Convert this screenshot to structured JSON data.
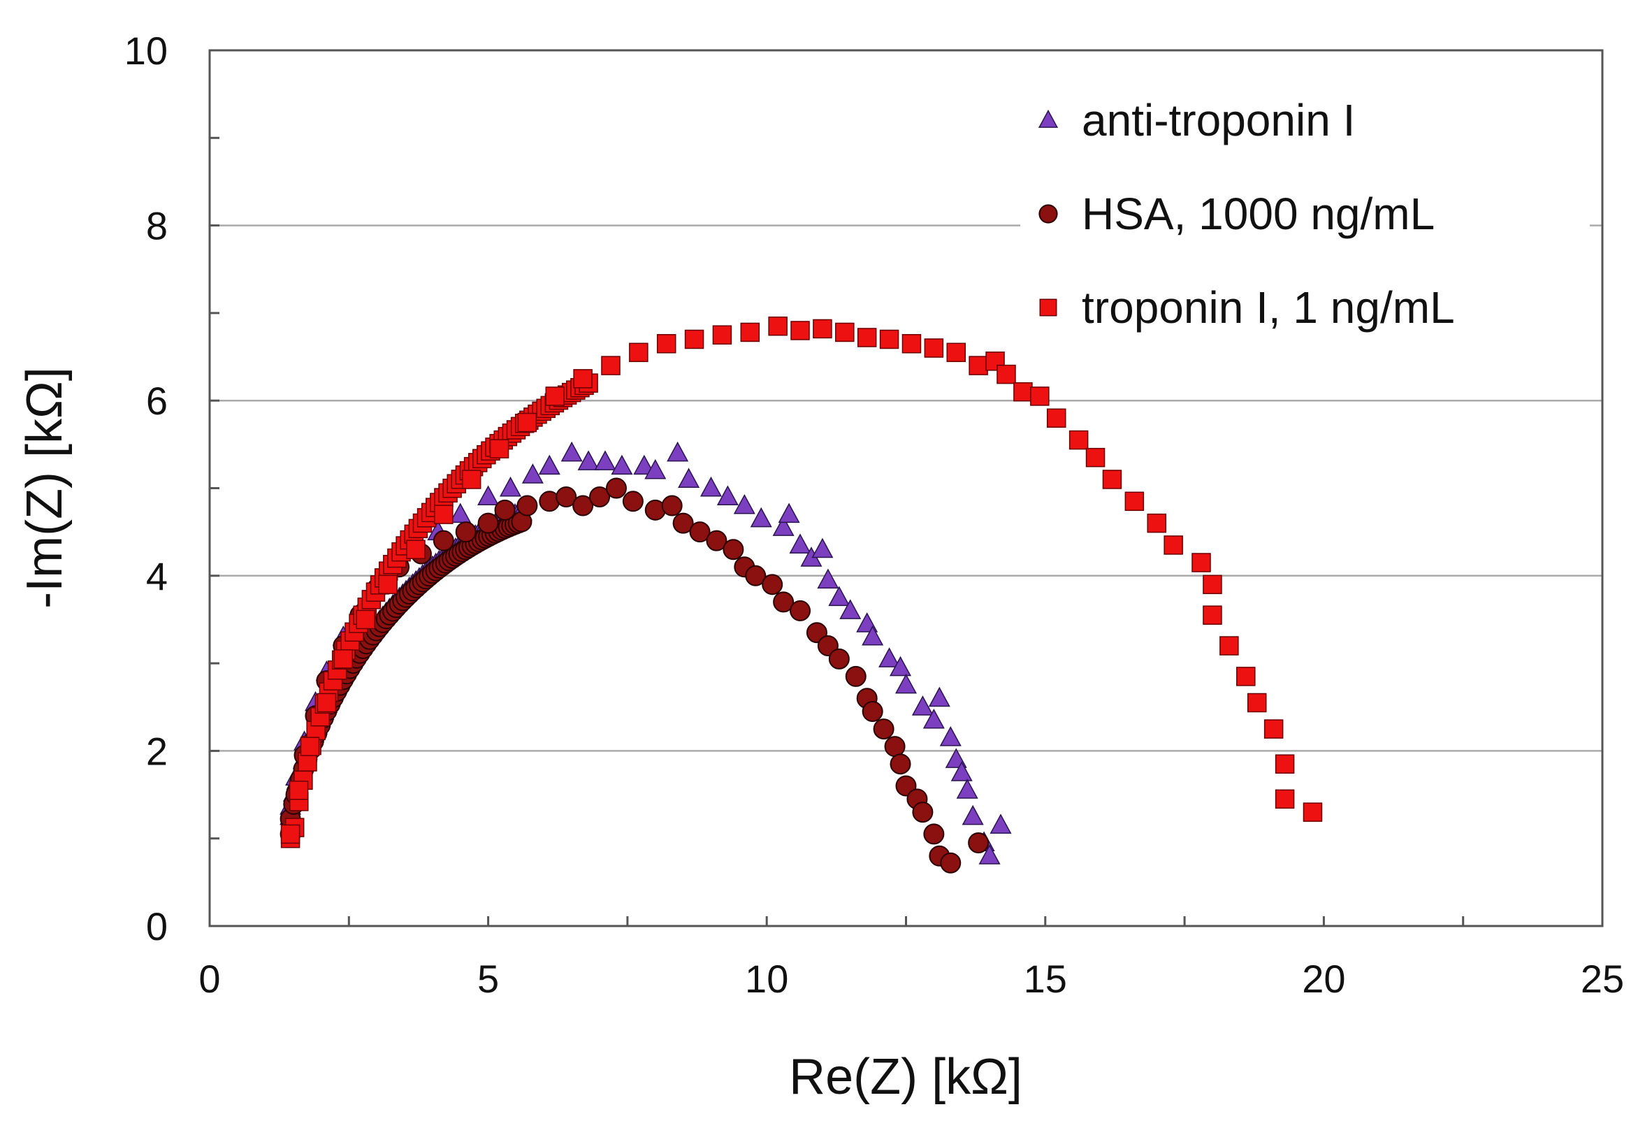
{
  "chart_data": {
    "type": "scatter",
    "title": "",
    "xlabel": "Re(Z) [kΩ]",
    "ylabel": "-Im(Z) [kΩ]",
    "xlim": [
      0,
      25
    ],
    "ylim": [
      0,
      10
    ],
    "xticks": [
      0,
      5,
      10,
      15,
      20,
      25
    ],
    "yticks": [
      0,
      2,
      4,
      6,
      8,
      10
    ],
    "xtick_labels": [
      "0",
      "5",
      "10",
      "15",
      "20",
      "25"
    ],
    "ytick_labels": [
      "0",
      "2",
      "4",
      "6",
      "8",
      "10"
    ],
    "grid": "horizontal",
    "legend_position": "top-right",
    "series": [
      {
        "name": "anti-troponin I",
        "marker": "triangle",
        "color": "#7b3fbf",
        "fit": {
          "center": 7.8,
          "radius": 6.6,
          "yscale": 0.76
        },
        "points": [
          [
            1.45,
            1.25
          ],
          [
            1.55,
            1.7
          ],
          [
            1.7,
            2.1
          ],
          [
            1.9,
            2.55
          ],
          [
            2.1,
            2.9
          ],
          [
            2.4,
            3.3
          ],
          [
            2.7,
            3.6
          ],
          [
            3.0,
            3.9
          ],
          [
            3.3,
            4.1
          ],
          [
            3.7,
            4.3
          ],
          [
            4.1,
            4.5
          ],
          [
            4.5,
            4.7
          ],
          [
            5.0,
            4.9
          ],
          [
            5.4,
            5.0
          ],
          [
            5.8,
            5.15
          ],
          [
            6.1,
            5.25
          ],
          [
            6.5,
            5.4
          ],
          [
            6.8,
            5.3
          ],
          [
            7.1,
            5.3
          ],
          [
            7.4,
            5.25
          ],
          [
            7.8,
            5.25
          ],
          [
            8.0,
            5.2
          ],
          [
            8.4,
            5.4
          ],
          [
            8.6,
            5.1
          ],
          [
            9.0,
            5.0
          ],
          [
            9.3,
            4.9
          ],
          [
            9.6,
            4.8
          ],
          [
            9.9,
            4.65
          ],
          [
            10.3,
            4.55
          ],
          [
            10.4,
            4.7
          ],
          [
            10.6,
            4.35
          ],
          [
            10.8,
            4.2
          ],
          [
            11.0,
            4.3
          ],
          [
            11.1,
            3.95
          ],
          [
            11.3,
            3.75
          ],
          [
            11.5,
            3.6
          ],
          [
            11.8,
            3.45
          ],
          [
            11.9,
            3.3
          ],
          [
            12.2,
            3.05
          ],
          [
            12.4,
            2.95
          ],
          [
            12.5,
            2.75
          ],
          [
            12.8,
            2.5
          ],
          [
            13.0,
            2.35
          ],
          [
            13.1,
            2.6
          ],
          [
            13.3,
            2.15
          ],
          [
            13.4,
            1.9
          ],
          [
            13.5,
            1.75
          ],
          [
            13.6,
            1.55
          ],
          [
            13.7,
            1.25
          ],
          [
            13.9,
            0.95
          ],
          [
            14.0,
            0.8
          ],
          [
            14.2,
            1.15
          ]
        ]
      },
      {
        "name": "HSA, 1000 ng/mL",
        "marker": "circle",
        "color": "#8b1010",
        "fit": {
          "center": 7.35,
          "radius": 6.1,
          "yscale": 0.79
        },
        "points": [
          [
            1.45,
            1.05
          ],
          [
            1.55,
            1.5
          ],
          [
            1.7,
            1.95
          ],
          [
            1.9,
            2.4
          ],
          [
            2.1,
            2.8
          ],
          [
            2.4,
            3.2
          ],
          [
            2.7,
            3.55
          ],
          [
            3.0,
            3.85
          ],
          [
            3.4,
            4.1
          ],
          [
            3.8,
            4.25
          ],
          [
            4.2,
            4.4
          ],
          [
            4.6,
            4.5
          ],
          [
            5.0,
            4.6
          ],
          [
            5.3,
            4.75
          ],
          [
            5.7,
            4.8
          ],
          [
            6.1,
            4.85
          ],
          [
            6.4,
            4.9
          ],
          [
            6.7,
            4.8
          ],
          [
            7.0,
            4.9
          ],
          [
            7.3,
            5.0
          ],
          [
            7.6,
            4.85
          ],
          [
            8.0,
            4.75
          ],
          [
            8.3,
            4.8
          ],
          [
            8.5,
            4.6
          ],
          [
            8.8,
            4.5
          ],
          [
            9.1,
            4.4
          ],
          [
            9.4,
            4.3
          ],
          [
            9.6,
            4.1
          ],
          [
            9.8,
            4.0
          ],
          [
            10.1,
            3.9
          ],
          [
            10.3,
            3.7
          ],
          [
            10.6,
            3.6
          ],
          [
            10.9,
            3.35
          ],
          [
            11.1,
            3.2
          ],
          [
            11.3,
            3.05
          ],
          [
            11.6,
            2.85
          ],
          [
            11.8,
            2.6
          ],
          [
            11.9,
            2.45
          ],
          [
            12.1,
            2.25
          ],
          [
            12.3,
            2.05
          ],
          [
            12.4,
            1.85
          ],
          [
            12.5,
            1.6
          ],
          [
            12.7,
            1.45
          ],
          [
            12.8,
            1.3
          ],
          [
            13.0,
            1.05
          ],
          [
            13.1,
            0.8
          ],
          [
            13.3,
            0.72
          ],
          [
            13.8,
            0.95
          ]
        ]
      },
      {
        "name": "troponin I, 1 ng/mL",
        "marker": "square",
        "color": "#ee1111",
        "fit": {
          "center": 10.6,
          "radius": 9.2,
          "yscale": 0.74
        },
        "points": [
          [
            1.45,
            1.05
          ],
          [
            1.6,
            1.55
          ],
          [
            1.8,
            2.05
          ],
          [
            2.1,
            2.55
          ],
          [
            2.4,
            3.05
          ],
          [
            2.8,
            3.5
          ],
          [
            3.2,
            3.9
          ],
          [
            3.7,
            4.3
          ],
          [
            4.2,
            4.7
          ],
          [
            4.7,
            5.1
          ],
          [
            5.2,
            5.45
          ],
          [
            5.7,
            5.75
          ],
          [
            6.2,
            6.05
          ],
          [
            6.7,
            6.25
          ],
          [
            7.2,
            6.4
          ],
          [
            7.7,
            6.55
          ],
          [
            8.2,
            6.65
          ],
          [
            8.7,
            6.7
          ],
          [
            9.2,
            6.75
          ],
          [
            9.7,
            6.78
          ],
          [
            10.2,
            6.85
          ],
          [
            10.6,
            6.8
          ],
          [
            11.0,
            6.82
          ],
          [
            11.4,
            6.78
          ],
          [
            11.8,
            6.72
          ],
          [
            12.2,
            6.7
          ],
          [
            12.6,
            6.65
          ],
          [
            13.0,
            6.6
          ],
          [
            13.4,
            6.55
          ],
          [
            13.8,
            6.4
          ],
          [
            14.1,
            6.45
          ],
          [
            14.3,
            6.3
          ],
          [
            14.6,
            6.1
          ],
          [
            14.9,
            6.05
          ],
          [
            15.2,
            5.8
          ],
          [
            15.6,
            5.55
          ],
          [
            15.9,
            5.35
          ],
          [
            16.2,
            5.1
          ],
          [
            16.6,
            4.85
          ],
          [
            17.0,
            4.6
          ],
          [
            17.3,
            4.35
          ],
          [
            17.8,
            4.15
          ],
          [
            18.0,
            3.9
          ],
          [
            18.0,
            3.55
          ],
          [
            18.3,
            3.2
          ],
          [
            18.6,
            2.85
          ],
          [
            18.8,
            2.55
          ],
          [
            19.1,
            2.25
          ],
          [
            19.3,
            1.85
          ],
          [
            19.3,
            1.45
          ],
          [
            19.8,
            1.3
          ]
        ]
      }
    ]
  }
}
